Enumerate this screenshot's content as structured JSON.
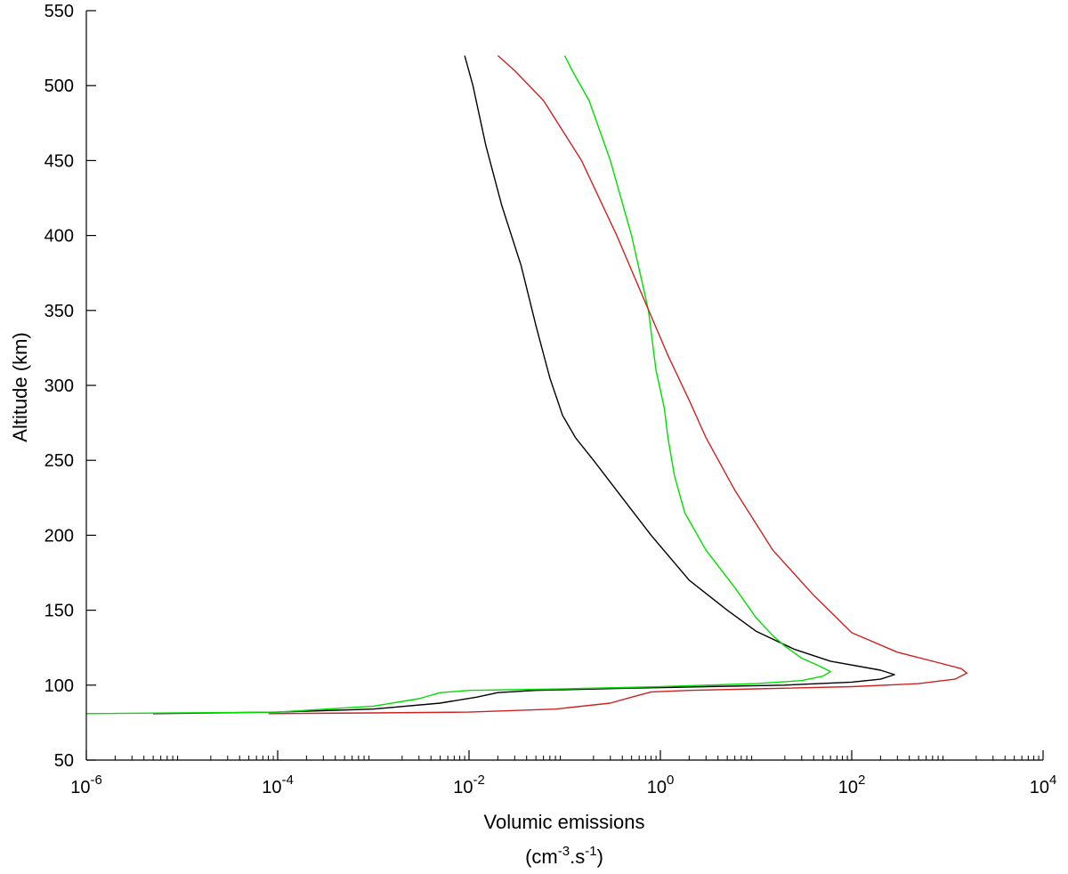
{
  "chart_data": {
    "type": "line",
    "title": "",
    "xlabel_line1": "Volumic emissions",
    "xlabel_line2_parts": [
      "(cm",
      "-3",
      ".s",
      "-1",
      ")"
    ],
    "ylabel": "Altitude (km)",
    "x_scale": "log",
    "xlim": [
      1e-06,
      10000.0
    ],
    "ylim": [
      50,
      550
    ],
    "grid": false,
    "legend": "none",
    "x_ticks": [
      {
        "base": "10",
        "exp": "-6",
        "value": 1e-06
      },
      {
        "base": "10",
        "exp": "-4",
        "value": 0.0001
      },
      {
        "base": "10",
        "exp": "-2",
        "value": 0.01
      },
      {
        "base": "10",
        "exp": "0",
        "value": 1
      },
      {
        "base": "10",
        "exp": "2",
        "value": 100
      },
      {
        "base": "10",
        "exp": "4",
        "value": 10000
      }
    ],
    "y_ticks": [
      "50",
      "100",
      "150",
      "200",
      "250",
      "300",
      "350",
      "400",
      "450",
      "500",
      "550"
    ],
    "series": [
      {
        "color": "#000000",
        "points": [
          [
            5e-06,
            81
          ],
          [
            0.0001,
            82
          ],
          [
            0.001,
            84
          ],
          [
            0.005,
            88
          ],
          [
            0.012,
            92
          ],
          [
            0.02,
            95
          ],
          [
            0.05,
            96.5
          ],
          [
            0.5,
            98
          ],
          [
            3,
            99
          ],
          [
            20,
            100
          ],
          [
            100,
            102
          ],
          [
            200,
            104
          ],
          [
            280,
            107
          ],
          [
            200,
            110
          ],
          [
            60,
            116
          ],
          [
            25,
            124
          ],
          [
            10,
            136
          ],
          [
            5,
            150
          ],
          [
            2,
            170
          ],
          [
            0.8,
            200
          ],
          [
            0.4,
            225
          ],
          [
            0.2,
            250
          ],
          [
            0.13,
            265
          ],
          [
            0.095,
            280
          ],
          [
            0.07,
            305
          ],
          [
            0.05,
            340
          ],
          [
            0.035,
            380
          ],
          [
            0.022,
            420
          ],
          [
            0.015,
            460
          ],
          [
            0.011,
            500
          ],
          [
            0.009,
            520
          ]
        ]
      },
      {
        "color": "#00dd00",
        "points": [
          [
            1e-06,
            81
          ],
          [
            0.0001,
            82
          ],
          [
            0.001,
            86
          ],
          [
            0.003,
            91
          ],
          [
            0.005,
            95
          ],
          [
            0.01,
            96.5
          ],
          [
            0.1,
            97.5
          ],
          [
            1,
            99
          ],
          [
            10,
            101
          ],
          [
            30,
            103
          ],
          [
            50,
            106
          ],
          [
            60,
            109
          ],
          [
            45,
            113
          ],
          [
            30,
            118
          ],
          [
            20,
            126
          ],
          [
            15,
            133
          ],
          [
            10,
            145
          ],
          [
            6,
            165
          ],
          [
            3,
            190
          ],
          [
            1.8,
            215
          ],
          [
            1.4,
            240
          ],
          [
            1.2,
            265
          ],
          [
            1.1,
            285
          ],
          [
            0.9,
            310
          ],
          [
            0.75,
            350
          ],
          [
            0.5,
            400
          ],
          [
            0.3,
            450
          ],
          [
            0.18,
            490
          ],
          [
            0.12,
            510
          ],
          [
            0.1,
            520
          ]
        ]
      },
      {
        "color": "#cc2222",
        "points": [
          [
            8e-05,
            81
          ],
          [
            0.001,
            81.5
          ],
          [
            0.01,
            82
          ],
          [
            0.08,
            84
          ],
          [
            0.3,
            88
          ],
          [
            0.5,
            92
          ],
          [
            0.8,
            95.5
          ],
          [
            2,
            96.5
          ],
          [
            10,
            97.5
          ],
          [
            100,
            99
          ],
          [
            500,
            101
          ],
          [
            1200,
            104
          ],
          [
            1600,
            108
          ],
          [
            1400,
            111
          ],
          [
            800,
            115
          ],
          [
            300,
            122
          ],
          [
            100,
            135
          ],
          [
            40,
            160
          ],
          [
            15,
            190
          ],
          [
            6,
            230
          ],
          [
            3,
            265
          ],
          [
            2,
            290
          ],
          [
            1.2,
            320
          ],
          [
            0.7,
            355
          ],
          [
            0.35,
            400
          ],
          [
            0.15,
            450
          ],
          [
            0.06,
            490
          ],
          [
            0.03,
            510
          ],
          [
            0.02,
            520
          ]
        ]
      }
    ]
  }
}
